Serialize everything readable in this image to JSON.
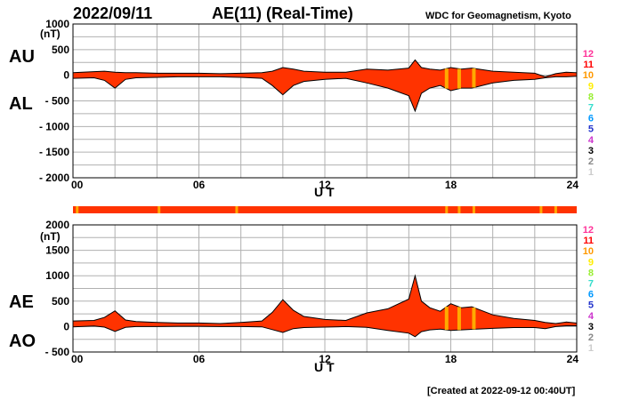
{
  "header": {
    "date": "2022/09/11",
    "title": "AE(11) (Real-Time)",
    "source": "WDC for Geomagnetism, Kyoto"
  },
  "footer": {
    "created": "[Created at 2022-09-12 00:40UT]"
  },
  "legend": {
    "items": [
      {
        "label": "12",
        "color": "#ff3399"
      },
      {
        "label": "11",
        "color": "#ff0000"
      },
      {
        "label": "10",
        "color": "#ff9900"
      },
      {
        "label": "9",
        "color": "#ffee00"
      },
      {
        "label": "8",
        "color": "#99ee33"
      },
      {
        "label": "7",
        "color": "#33ddcc"
      },
      {
        "label": "6",
        "color": "#0099ff"
      },
      {
        "label": "5",
        "color": "#2233cc"
      },
      {
        "label": "4",
        "color": "#cc33cc"
      },
      {
        "label": "3",
        "color": "#000000"
      },
      {
        "label": "2",
        "color": "#888888"
      },
      {
        "label": "1",
        "color": "#cccccc"
      }
    ]
  },
  "colors": {
    "fill": "#ff3300",
    "highlight": "#ffaa00",
    "grid": "#b0b0b0"
  },
  "chart_data": [
    {
      "type": "area",
      "panel": "top",
      "series": [
        {
          "name": "AU",
          "x": [
            0,
            1,
            1.5,
            2,
            2.5,
            3,
            4,
            5,
            6,
            7,
            8,
            9,
            9.5,
            10,
            10.5,
            11,
            12,
            13,
            14,
            15,
            16,
            16.3,
            16.6,
            17,
            17.5,
            18,
            18.5,
            19,
            20,
            21,
            22,
            22.5,
            23,
            23.5,
            24
          ],
          "values": [
            50,
            70,
            80,
            60,
            50,
            50,
            40,
            40,
            40,
            30,
            40,
            50,
            80,
            150,
            120,
            80,
            60,
            60,
            120,
            100,
            140,
            300,
            150,
            120,
            100,
            150,
            120,
            140,
            80,
            60,
            40,
            -30,
            30,
            60,
            50
          ]
        },
        {
          "name": "AL",
          "x": [
            0,
            1,
            1.5,
            2,
            2.5,
            3,
            4,
            5,
            6,
            7,
            8,
            9,
            9.5,
            10,
            10.5,
            11,
            12,
            13,
            14,
            15,
            16,
            16.3,
            16.6,
            17,
            17.5,
            18,
            18.5,
            19,
            20,
            21,
            22,
            22.5,
            23,
            23.5,
            24
          ],
          "values": [
            -60,
            -50,
            -100,
            -250,
            -80,
            -50,
            -40,
            -30,
            -30,
            -30,
            -40,
            -60,
            -200,
            -380,
            -200,
            -120,
            -80,
            -60,
            -150,
            -250,
            -400,
            -700,
            -350,
            -250,
            -200,
            -300,
            -250,
            -250,
            -150,
            -100,
            -80,
            -50,
            -30,
            -30,
            -20
          ]
        }
      ],
      "xlabel": "U T",
      "ylabel": "(nT)",
      "xticks": [
        "00",
        "06",
        "12",
        "18",
        "24"
      ],
      "yticks": [
        "1000",
        "500",
        "0",
        "- 500",
        "- 1000",
        "- 1500",
        "- 2000"
      ],
      "xlim": [
        0,
        24
      ],
      "ylim": [
        -2000,
        1000
      ],
      "grid": true
    },
    {
      "type": "area",
      "panel": "bottom",
      "series": [
        {
          "name": "AE",
          "x": [
            0,
            1,
            1.5,
            2,
            2.5,
            3,
            4,
            5,
            6,
            7,
            8,
            9,
            9.5,
            10,
            10.5,
            11,
            12,
            13,
            14,
            15,
            16,
            16.3,
            16.6,
            17,
            17.5,
            18,
            18.5,
            19,
            20,
            21,
            22,
            22.5,
            23,
            23.5,
            24
          ],
          "values": [
            110,
            120,
            180,
            310,
            130,
            100,
            80,
            70,
            70,
            60,
            80,
            110,
            280,
            530,
            320,
            200,
            140,
            120,
            270,
            350,
            540,
            1000,
            500,
            370,
            300,
            450,
            370,
            390,
            230,
            160,
            120,
            80,
            60,
            90,
            70
          ]
        },
        {
          "name": "AO",
          "x": [
            0,
            1,
            1.5,
            2,
            2.5,
            3,
            4,
            5,
            6,
            7,
            8,
            9,
            9.5,
            10,
            10.5,
            11,
            12,
            13,
            14,
            15,
            16,
            16.3,
            16.6,
            17,
            17.5,
            18,
            18.5,
            19,
            20,
            21,
            22,
            22.5,
            23,
            23.5,
            24
          ],
          "values": [
            -5,
            10,
            -10,
            -95,
            -15,
            0,
            0,
            5,
            5,
            0,
            0,
            -5,
            -60,
            -115,
            -40,
            -20,
            -10,
            0,
            -15,
            -75,
            -130,
            -200,
            -100,
            -65,
            -50,
            -75,
            -65,
            -55,
            -35,
            -20,
            -20,
            -40,
            0,
            15,
            15
          ]
        }
      ],
      "xlabel": "U T",
      "ylabel": "(nT)",
      "xticks": [
        "00",
        "06",
        "12",
        "18",
        "24"
      ],
      "yticks": [
        "2000",
        "1500",
        "1000",
        "500",
        "0",
        "- 500"
      ],
      "xlim": [
        0,
        24
      ],
      "ylim": [
        -500,
        2000
      ],
      "grid": true
    }
  ]
}
